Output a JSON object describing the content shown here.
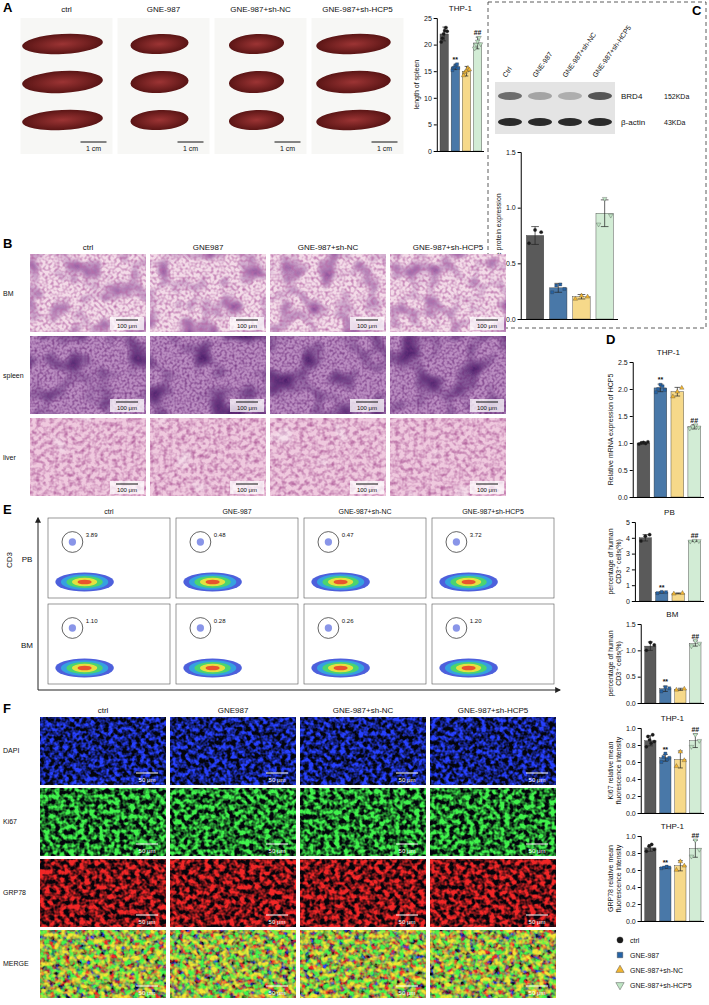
{
  "figure": {
    "A": {
      "letter": "A",
      "groups": [
        "ctrl",
        "GNE-987",
        "GNE-987+sh-NC",
        "GNE-987+sh-HCP5"
      ],
      "scale_bar": "1 cm"
    },
    "B": {
      "letter": "B",
      "groups": [
        "ctrl",
        "GNE987",
        "GNE-987+sh-NC",
        "GNE-987+sh-HCP5"
      ],
      "rows": [
        "BM",
        "spleen",
        "liver"
      ],
      "scale_bar": "100 μm"
    },
    "C": {
      "letter": "C",
      "lanes": [
        "Ctrl",
        "GNE-987",
        "GNE-987+sh-NC",
        "GNE-987+sh-HCP5"
      ],
      "bands": [
        {
          "name": "BRD4",
          "size": "152KDa"
        },
        {
          "name": "β-actin",
          "size": "43KDa"
        }
      ]
    },
    "D": {
      "letter": "D"
    },
    "E": {
      "letter": "E",
      "groups": [
        "ctrl",
        "GNE-987",
        "GNE-987+sh-NC",
        "GNE-987+sh-HCP5"
      ],
      "rows": [
        "PB",
        "BM"
      ],
      "marker_label": "CD3",
      "gates": [
        [
          "3.89",
          "0.48",
          "0.47",
          "3.72"
        ],
        [
          "1.10",
          "0.28",
          "0.26",
          "1.20"
        ]
      ]
    },
    "F": {
      "letter": "F",
      "groups": [
        "ctrl",
        "GNE987",
        "GNE-987+sh-NC",
        "GNE-987+sh-HCP5"
      ],
      "rows": [
        "DAPI",
        "Ki67",
        "GRP78",
        "MERGE"
      ],
      "scale_bar": "50 μm"
    },
    "legend": [
      {
        "name": "ctrl",
        "color": "#1a1a1a",
        "marker": "circle"
      },
      {
        "name": "GNE-987",
        "color": "#2563a6",
        "marker": "square"
      },
      {
        "name": "GNE-987+sh-NC",
        "color": "#f2b632",
        "marker": "triangle"
      },
      {
        "name": "GNE-987+sh-HCP5",
        "color": "#bfe5c4",
        "marker": "triangle-down"
      }
    ]
  },
  "chart_data": [
    {
      "type": "bar",
      "title": "THP-1",
      "y_label": "length of spleen",
      "categories": [
        null,
        null,
        null,
        null
      ],
      "values": [
        22,
        15.8,
        15,
        20.3
      ],
      "error": [
        1.3,
        0.5,
        0.9,
        1.1
      ],
      "points": [
        [
          20.5,
          21.2,
          22,
          22.6,
          23.2,
          22.5
        ],
        [
          15.2,
          15.6,
          15.8,
          16.1,
          16.3,
          15.6
        ],
        [
          14.2,
          14.8,
          15.1,
          15.6,
          15.3
        ],
        [
          19.3,
          20.0,
          20.6,
          21.3,
          20.1
        ]
      ],
      "annotations": [
        null,
        "**",
        null,
        "##"
      ],
      "colors": [
        "#5a5a5a",
        "#4978a8",
        "#f6d98a",
        "#d2ecd5"
      ],
      "ylim": [
        0,
        25
      ],
      "yticks": [
        0,
        5,
        10,
        15,
        20,
        25
      ]
    },
    {
      "type": "bar",
      "y_label": "Relative protein expression",
      "categories": [
        null,
        null,
        null,
        null
      ],
      "values": [
        0.75,
        0.28,
        0.2,
        0.95
      ],
      "error": [
        0.08,
        0.04,
        0.02,
        0.12
      ],
      "points": [
        [
          0.68,
          0.8,
          0.78
        ],
        [
          0.24,
          0.3,
          0.31,
          0.27
        ],
        [
          0.18,
          0.21,
          0.2
        ],
        [
          0.85,
          1.08,
          0.93
        ]
      ],
      "annotations": [
        null,
        null,
        null,
        null
      ],
      "colors": [
        "#5a5a5a",
        "#4978a8",
        "#f6d98a",
        "#d2ecd5"
      ],
      "ylim": [
        0,
        1.5
      ],
      "yticks": [
        {
          "value": 0,
          "label": "0.0"
        },
        0.5,
        {
          "value": 1,
          "label": "1.0"
        },
        1.5
      ]
    },
    {
      "type": "bar",
      "title": "THP-1",
      "y_label": "Relative mRNA expression of HCP5",
      "categories": [
        null,
        null,
        null,
        null
      ],
      "values": [
        1.0,
        2.02,
        1.95,
        1.3
      ],
      "error": [
        0.02,
        0.07,
        0.08,
        0.04
      ],
      "points": [
        [
          0.98,
          1.0,
          1.01,
          0.99,
          1.02
        ],
        [
          1.94,
          2.0,
          2.08,
          2.05,
          1.98
        ],
        [
          1.86,
          1.95,
          2.02
        ],
        [
          1.27,
          1.3,
          1.33,
          1.29
        ]
      ],
      "annotations": [
        null,
        "**",
        null,
        "##"
      ],
      "colors": [
        "#5a5a5a",
        "#4978a8",
        "#f6d98a",
        "#d2ecd5"
      ],
      "ylim": [
        0,
        2.5
      ],
      "yticks": [
        {
          "value": 0,
          "label": "0.0"
        },
        0.5,
        {
          "value": 1,
          "label": "1.0"
        },
        1.5,
        {
          "value": 2,
          "label": "2.0"
        },
        2.5
      ]
    },
    {
      "type": "bar",
      "title": "PB",
      "y_label": "percentage of human CD3⁺ cells(%)",
      "categories": [
        null,
        null,
        null,
        null
      ],
      "values": [
        4.0,
        0.55,
        0.48,
        3.8
      ],
      "error": [
        0.2,
        0.05,
        0.03,
        0.04
      ],
      "points": [
        [
          3.8,
          4.1,
          4.2
        ],
        [
          0.5,
          0.58,
          0.56
        ],
        [
          0.46,
          0.5
        ],
        [
          3.77,
          3.82,
          3.8
        ]
      ],
      "annotations": [
        null,
        "**",
        null,
        "##"
      ],
      "colors": [
        "#5a5a5a",
        "#4978a8",
        "#f6d98a",
        "#d2ecd5"
      ],
      "ylim": [
        0,
        5
      ],
      "yticks": [
        0,
        1,
        2,
        3,
        4,
        5
      ]
    },
    {
      "type": "bar",
      "title": "BM",
      "y_label": "percentage of human CD3⁺ cells(%)",
      "categories": [
        null,
        null,
        null,
        null
      ],
      "values": [
        1.08,
        0.27,
        0.26,
        1.13
      ],
      "error": [
        0.08,
        0.05,
        0.02,
        0.05
      ],
      "points": [
        [
          1.0,
          1.15,
          1.1
        ],
        [
          0.22,
          0.3,
          0.28
        ],
        [
          0.25,
          0.27
        ],
        [
          1.08,
          1.18,
          1.13
        ]
      ],
      "annotations": [
        null,
        "**",
        null,
        "##"
      ],
      "colors": [
        "#5a5a5a",
        "#4978a8",
        "#f6d98a",
        "#d2ecd5"
      ],
      "ylim": [
        0,
        1.5
      ],
      "yticks": [
        {
          "value": 0,
          "label": "0.0"
        },
        0.5,
        {
          "value": 1,
          "label": "1.0"
        },
        1.5
      ]
    },
    {
      "type": "bar",
      "title": "THP-1",
      "y_label": "Ki67 relative mean fluorescence intensity",
      "categories": [
        null,
        null,
        null,
        null
      ],
      "values": [
        0.85,
        0.65,
        0.63,
        0.85
      ],
      "error": [
        0.06,
        0.04,
        0.1,
        0.08
      ],
      "points": [
        [
          0.78,
          0.9,
          0.86,
          0.82,
          0.92,
          0.84
        ],
        [
          0.6,
          0.66,
          0.7,
          0.63,
          0.65
        ],
        [
          0.55,
          0.72,
          0.62
        ],
        [
          0.78,
          0.92,
          0.85
        ]
      ],
      "annotations": [
        null,
        "**",
        null,
        "##"
      ],
      "colors": [
        "#5a5a5a",
        "#4978a8",
        "#f6d98a",
        "#d2ecd5"
      ],
      "ylim": [
        0,
        1
      ],
      "yticks": [
        {
          "value": 0,
          "label": "0.0"
        },
        0.2,
        0.4,
        0.6,
        0.8,
        {
          "value": 1,
          "label": "1.0"
        }
      ]
    },
    {
      "type": "bar",
      "title": "THP-1",
      "y_label": "GRP78 relative mean fluorescence intensity",
      "categories": [
        null,
        null,
        null,
        null
      ],
      "values": [
        0.86,
        0.63,
        0.65,
        0.85
      ],
      "error": [
        0.04,
        0.01,
        0.06,
        0.1
      ],
      "points": [
        [
          0.82,
          0.88,
          0.9,
          0.84
        ],
        [
          0.62,
          0.63,
          0.64,
          0.63
        ],
        [
          0.6,
          0.7,
          0.65
        ],
        [
          0.76,
          0.95,
          0.84
        ]
      ],
      "annotations": [
        null,
        "**",
        null,
        "##"
      ],
      "colors": [
        "#5a5a5a",
        "#4978a8",
        "#f6d98a",
        "#d2ecd5"
      ],
      "ylim": [
        0,
        1
      ],
      "yticks": [
        {
          "value": 0,
          "label": "0.0"
        },
        0.2,
        0.4,
        0.6,
        0.8,
        {
          "value": 1,
          "label": "1.0"
        }
      ]
    }
  ]
}
